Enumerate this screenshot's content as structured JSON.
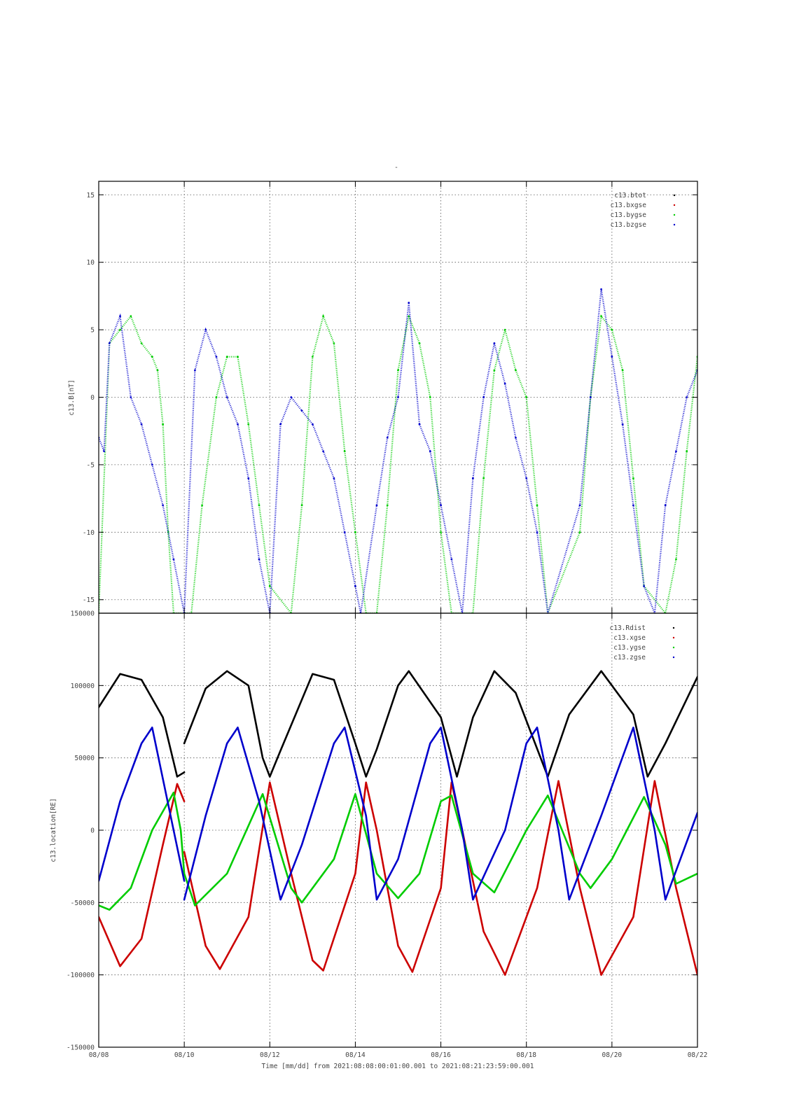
{
  "title": "-",
  "colors": {
    "btot": "#000000",
    "bx": "#cc0000",
    "by": "#00cc00",
    "bz": "#0000cc"
  },
  "chart_data": [
    {
      "type": "scatter",
      "ylabel": "c13.B[nT]",
      "ylim": [
        -16,
        16
      ],
      "yticks": [
        -15,
        -10,
        -5,
        0,
        5,
        10,
        15
      ],
      "ytick_labels": [
        "-15",
        "-10",
        "-5",
        "0",
        "5",
        "10",
        "15"
      ],
      "xlim": [
        "08/08",
        "08/22"
      ],
      "grid": true,
      "legend_position": "top-right",
      "series": [
        {
          "name": "c13.btot",
          "color": "#000000",
          "points": []
        },
        {
          "name": "c13.bxgse",
          "color": "#cc0000",
          "points": []
        },
        {
          "name": "c13.bygse",
          "color": "#00cc00",
          "points": [
            [
              "08/08",
              -16
            ],
            [
              "08/08 06:00",
              4
            ],
            [
              "08/08 12:00",
              5
            ],
            [
              "08/08 18:00",
              6
            ],
            [
              "08/09",
              4
            ],
            [
              "08/09 06:00",
              3
            ],
            [
              "08/09 09:00",
              2
            ],
            [
              "08/09 12:00",
              -2
            ],
            [
              "08/09 15:00",
              -10
            ],
            [
              "08/09 18:00",
              -16
            ],
            [
              "08/10 04:00",
              -16
            ],
            [
              "08/10 10:00",
              -8
            ],
            [
              "08/10 18:00",
              0
            ],
            [
              "08/11",
              3
            ],
            [
              "08/11 06:00",
              3
            ],
            [
              "08/11 12:00",
              -2
            ],
            [
              "08/11 18:00",
              -8
            ],
            [
              "08/12",
              -14
            ],
            [
              "08/12 12:00",
              -16
            ],
            [
              "08/12 18:00",
              -8
            ],
            [
              "08/13",
              3
            ],
            [
              "08/13 06:00",
              6
            ],
            [
              "08/13 12:00",
              4
            ],
            [
              "08/13 18:00",
              -4
            ],
            [
              "08/14",
              -10
            ],
            [
              "08/14 06:00",
              -16
            ],
            [
              "08/14 12:00",
              -16
            ],
            [
              "08/14 18:00",
              -8
            ],
            [
              "08/15",
              2
            ],
            [
              "08/15 06:00",
              6
            ],
            [
              "08/15 12:00",
              4
            ],
            [
              "08/15 18:00",
              0
            ],
            [
              "08/16",
              -10
            ],
            [
              "08/16 06:00",
              -16
            ],
            [
              "08/16 18:00",
              -16
            ],
            [
              "08/17",
              -6
            ],
            [
              "08/17 06:00",
              2
            ],
            [
              "08/17 12:00",
              5
            ],
            [
              "08/17 18:00",
              2
            ],
            [
              "08/18",
              0
            ],
            [
              "08/18 06:00",
              -8
            ],
            [
              "08/18 12:00",
              -16
            ],
            [
              "08/19 06:00",
              -10
            ],
            [
              "08/19 12:00",
              0
            ],
            [
              "08/19 18:00",
              6
            ],
            [
              "08/20",
              5
            ],
            [
              "08/20 06:00",
              2
            ],
            [
              "08/20 12:00",
              -6
            ],
            [
              "08/20 18:00",
              -14
            ],
            [
              "08/21 06:00",
              -16
            ],
            [
              "08/21 12:00",
              -12
            ],
            [
              "08/21 18:00",
              -4
            ],
            [
              "08/22",
              3
            ]
          ]
        },
        {
          "name": "c13.bzgse",
          "color": "#0000cc",
          "points": [
            [
              "08/08",
              -3
            ],
            [
              "08/08 03:00",
              -4
            ],
            [
              "08/08 06:00",
              4
            ],
            [
              "08/08 12:00",
              6
            ],
            [
              "08/08 18:00",
              0
            ],
            [
              "08/09",
              -2
            ],
            [
              "08/09 06:00",
              -5
            ],
            [
              "08/09 12:00",
              -8
            ],
            [
              "08/09 18:00",
              -12
            ],
            [
              "08/10",
              -16
            ],
            [
              "08/10 06:00",
              2
            ],
            [
              "08/10 12:00",
              5
            ],
            [
              "08/10 18:00",
              3
            ],
            [
              "08/11",
              0
            ],
            [
              "08/11 06:00",
              -2
            ],
            [
              "08/11 12:00",
              -6
            ],
            [
              "08/11 18:00",
              -12
            ],
            [
              "08/12",
              -16
            ],
            [
              "08/12 06:00",
              -2
            ],
            [
              "08/12 12:00",
              0
            ],
            [
              "08/12 18:00",
              -1
            ],
            [
              "08/13",
              -2
            ],
            [
              "08/13 06:00",
              -4
            ],
            [
              "08/13 12:00",
              -6
            ],
            [
              "08/13 18:00",
              -10
            ],
            [
              "08/14",
              -14
            ],
            [
              "08/14 03:00",
              -16
            ],
            [
              "08/14 12:00",
              -8
            ],
            [
              "08/14 18:00",
              -3
            ],
            [
              "08/15",
              0
            ],
            [
              "08/15 06:00",
              7
            ],
            [
              "08/15 12:00",
              -2
            ],
            [
              "08/15 18:00",
              -4
            ],
            [
              "08/16",
              -8
            ],
            [
              "08/16 06:00",
              -12
            ],
            [
              "08/16 12:00",
              -16
            ],
            [
              "08/16 18:00",
              -6
            ],
            [
              "08/17",
              0
            ],
            [
              "08/17 06:00",
              4
            ],
            [
              "08/17 12:00",
              1
            ],
            [
              "08/17 18:00",
              -3
            ],
            [
              "08/18",
              -6
            ],
            [
              "08/18 06:00",
              -10
            ],
            [
              "08/18 12:00",
              -16
            ],
            [
              "08/19 06:00",
              -8
            ],
            [
              "08/19 12:00",
              0
            ],
            [
              "08/19 18:00",
              8
            ],
            [
              "08/20",
              3
            ],
            [
              "08/20 06:00",
              -2
            ],
            [
              "08/20 12:00",
              -8
            ],
            [
              "08/20 18:00",
              -14
            ],
            [
              "08/21",
              -16
            ],
            [
              "08/21 06:00",
              -8
            ],
            [
              "08/21 12:00",
              -4
            ],
            [
              "08/21 18:00",
              0
            ],
            [
              "08/22",
              2
            ]
          ]
        }
      ]
    },
    {
      "type": "line",
      "ylabel": "c13.location[RE]",
      "xlabel": "Time [mm/dd]  from 2021:08:08:00:01:00.001  to  2021:08:21:23:59:00.001",
      "ylim": [
        -150000,
        150000
      ],
      "yticks": [
        -150000,
        -100000,
        -50000,
        0,
        50000,
        100000,
        150000
      ],
      "ytick_labels": [
        "-150000",
        "-100000",
        "-50000",
        "0",
        "50000",
        "100000",
        "150000"
      ],
      "xlim": [
        "08/08",
        "08/22"
      ],
      "x_ticks": [
        "08/08",
        "08/10",
        "08/12",
        "08/14",
        "08/16",
        "08/18",
        "08/20",
        "08/22"
      ],
      "grid": true,
      "legend_position": "top-right",
      "series": [
        {
          "name": "c13.Rdist",
          "color": "#000000",
          "points": [
            [
              "08/08",
              85000
            ],
            [
              "08/08 12:00",
              108000
            ],
            [
              "08/09",
              104000
            ],
            [
              "08/09 12:00",
              78000
            ],
            [
              "08/09 20:00",
              37000
            ],
            [
              "08/10",
              40000
            ],
            [
              "08/10",
              60000
            ],
            [
              "08/10 12:00",
              98000
            ],
            [
              "08/11",
              110000
            ],
            [
              "08/11 12:00",
              100000
            ],
            [
              "08/11 20:00",
              50000
            ],
            [
              "08/12",
              37000
            ],
            [
              "08/12 06:00",
              55000
            ],
            [
              "08/13",
              108000
            ],
            [
              "08/13 12:00",
              104000
            ],
            [
              "08/14",
              60000
            ],
            [
              "08/14 06:00",
              37000
            ],
            [
              "08/14 12:00",
              56000
            ],
            [
              "08/15",
              100000
            ],
            [
              "08/15 06:00",
              110000
            ],
            [
              "08/16",
              78000
            ],
            [
              "08/16 09:00",
              37000
            ],
            [
              "08/16 18:00",
              78000
            ],
            [
              "08/17 06:00",
              110000
            ],
            [
              "08/17 18:00",
              95000
            ],
            [
              "08/18 12:00",
              37000
            ],
            [
              "08/19",
              80000
            ],
            [
              "08/19 18:00",
              110000
            ],
            [
              "08/20 12:00",
              80000
            ],
            [
              "08/20 20:00",
              37000
            ],
            [
              "08/21 06:00",
              60000
            ],
            [
              "08/22",
              106000
            ]
          ]
        },
        {
          "name": "c13.xgse",
          "color": "#cc0000",
          "points": [
            [
              "08/08",
              -60000
            ],
            [
              "08/08 12:00",
              -94000
            ],
            [
              "08/09",
              -75000
            ],
            [
              "08/09 12:00",
              -10000
            ],
            [
              "08/09 20:00",
              32000
            ],
            [
              "08/10",
              20000
            ],
            [
              "08/10",
              -15000
            ],
            [
              "08/10 12:00",
              -80000
            ],
            [
              "08/10 20:00",
              -96000
            ],
            [
              "08/11 12:00",
              -60000
            ],
            [
              "08/12",
              33000
            ],
            [
              "08/12 12:00",
              -30000
            ],
            [
              "08/13",
              -90000
            ],
            [
              "08/13 06:00",
              -97000
            ],
            [
              "08/14",
              -30000
            ],
            [
              "08/14 06:00",
              33000
            ],
            [
              "08/14 12:00",
              0
            ],
            [
              "08/15",
              -80000
            ],
            [
              "08/15 08:00",
              -98000
            ],
            [
              "08/16",
              -40000
            ],
            [
              "08/16 06:00",
              33000
            ],
            [
              "08/16 12:00",
              0
            ],
            [
              "08/17",
              -70000
            ],
            [
              "08/17 12:00",
              -100000
            ],
            [
              "08/18 06:00",
              -40000
            ],
            [
              "08/18 18:00",
              34000
            ],
            [
              "08/19 06:00",
              -40000
            ],
            [
              "08/19 18:00",
              -100000
            ],
            [
              "08/20 12:00",
              -60000
            ],
            [
              "08/21",
              34000
            ],
            [
              "08/21 12:00",
              -40000
            ],
            [
              "08/22",
              -100000
            ]
          ]
        },
        {
          "name": "c13.ygse",
          "color": "#00cc00",
          "points": [
            [
              "08/08",
              -52000
            ],
            [
              "08/08 06:00",
              -55000
            ],
            [
              "08/08 18:00",
              -40000
            ],
            [
              "08/09 06:00",
              0
            ],
            [
              "08/09 18:00",
              26000
            ],
            [
              "08/09 22:00",
              0
            ],
            [
              "08/10",
              -30000
            ],
            [
              "08/10 06:00",
              -52000
            ],
            [
              "08/11",
              -30000
            ],
            [
              "08/11 20:00",
              25000
            ],
            [
              "08/12 12:00",
              -40000
            ],
            [
              "08/12 18:00",
              -50000
            ],
            [
              "08/13 12:00",
              -20000
            ],
            [
              "08/14",
              25000
            ],
            [
              "08/14 12:00",
              -30000
            ],
            [
              "08/15",
              -47000
            ],
            [
              "08/15 12:00",
              -30000
            ],
            [
              "08/16",
              20000
            ],
            [
              "08/16 06:00",
              24000
            ],
            [
              "08/16 18:00",
              -30000
            ],
            [
              "08/17 06:00",
              -43000
            ],
            [
              "08/18",
              0
            ],
            [
              "08/18 12:00",
              24000
            ],
            [
              "08/19 06:00",
              -30000
            ],
            [
              "08/19 12:00",
              -40000
            ],
            [
              "08/20",
              -20000
            ],
            [
              "08/20 18:00",
              23000
            ],
            [
              "08/21 06:00",
              -10000
            ],
            [
              "08/21 12:00",
              -37000
            ],
            [
              "08/22",
              -30000
            ]
          ]
        },
        {
          "name": "c13.zgse",
          "color": "#0000cc",
          "points": [
            [
              "08/08",
              -35000
            ],
            [
              "08/08 12:00",
              20000
            ],
            [
              "08/09",
              60000
            ],
            [
              "08/09 06:00",
              71000
            ],
            [
              "08/09 18:00",
              0
            ],
            [
              "08/10",
              -35000
            ],
            [
              "08/10",
              -48000
            ],
            [
              "08/10 12:00",
              10000
            ],
            [
              "08/11",
              60000
            ],
            [
              "08/11 06:00",
              71000
            ],
            [
              "08/11 18:00",
              20000
            ],
            [
              "08/12 06:00",
              -48000
            ],
            [
              "08/12 18:00",
              -10000
            ],
            [
              "08/13 12:00",
              60000
            ],
            [
              "08/13 18:00",
              71000
            ],
            [
              "08/14 06:00",
              10000
            ],
            [
              "08/14 12:00",
              -48000
            ],
            [
              "08/15",
              -20000
            ],
            [
              "08/15 18:00",
              60000
            ],
            [
              "08/16",
              71000
            ],
            [
              "08/16 12:00",
              0
            ],
            [
              "08/16 18:00",
              -48000
            ],
            [
              "08/17 12:00",
              0
            ],
            [
              "08/18",
              60000
            ],
            [
              "08/18 06:00",
              71000
            ],
            [
              "08/18 18:00",
              0
            ],
            [
              "08/19",
              -48000
            ],
            [
              "08/19 18:00",
              10000
            ],
            [
              "08/20 12:00",
              71000
            ],
            [
              "08/21",
              0
            ],
            [
              "08/21 06:00",
              -48000
            ],
            [
              "08/22",
              12000
            ]
          ]
        }
      ]
    }
  ]
}
